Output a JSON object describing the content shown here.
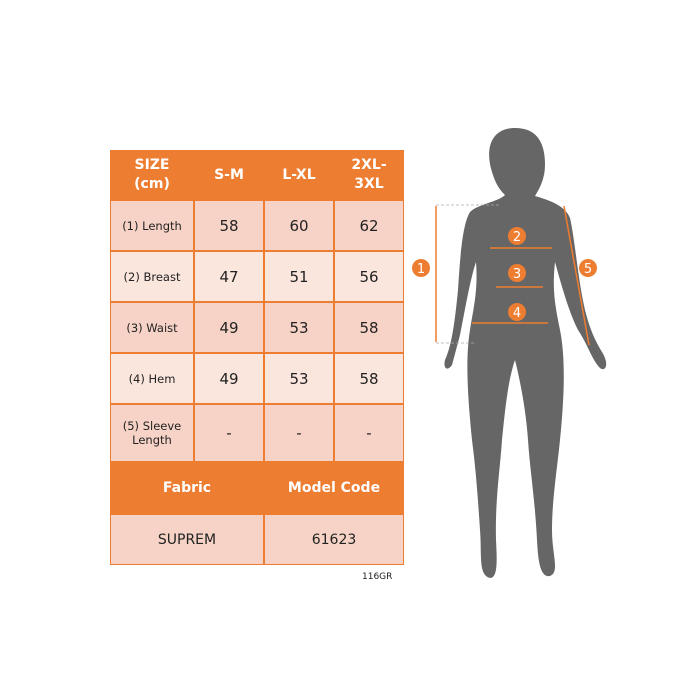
{
  "table": {
    "headers": [
      "SIZE\n(cm)",
      "S-M",
      "L-XL",
      "2XL-\n3XL"
    ],
    "rows": [
      {
        "label": "(1) Length",
        "values": [
          "58",
          "60",
          "62"
        ]
      },
      {
        "label": "(2) Breast",
        "values": [
          "47",
          "51",
          "56"
        ]
      },
      {
        "label": "(3) Waist",
        "values": [
          "49",
          "53",
          "58"
        ]
      },
      {
        "label": "(4) Hem",
        "values": [
          "49",
          "53",
          "58"
        ]
      },
      {
        "label": "(5) Sleeve Length",
        "values": [
          "-",
          "-",
          "-"
        ]
      }
    ],
    "footer_headers": [
      "Fabric",
      "Model Code"
    ],
    "footer_values": [
      "SUPREM",
      "61623"
    ]
  },
  "code_label": "116GR",
  "figure": {
    "markers": [
      "1",
      "2",
      "3",
      "4",
      "5"
    ],
    "accent": "#ED7D31",
    "silhouette": "#666666"
  }
}
